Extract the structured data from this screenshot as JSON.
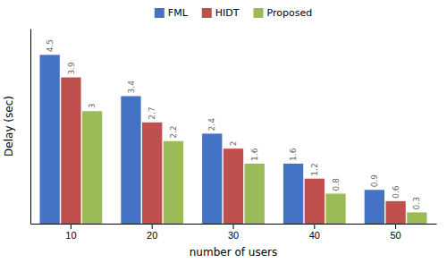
{
  "chart_data": {
    "type": "bar",
    "xlabel": "number of users",
    "ylabel": "Delay (sec)",
    "categories": [
      "10",
      "20",
      "30",
      "40",
      "50"
    ],
    "series": [
      {
        "name": "FML",
        "color": "#4472C4",
        "values": [
          4.5,
          3.4,
          2.4,
          1.6,
          0.9
        ]
      },
      {
        "name": "HIDT",
        "color": "#C0504D",
        "values": [
          3.9,
          2.7,
          2.0,
          1.2,
          0.6
        ]
      },
      {
        "name": "Proposed",
        "color": "#9BBB59",
        "values": [
          3.0,
          2.2,
          1.6,
          0.8,
          0.3
        ]
      }
    ],
    "ylim": [
      0,
      5.2
    ],
    "tick_labels": "x",
    "data_labels": true,
    "legend": "top"
  }
}
